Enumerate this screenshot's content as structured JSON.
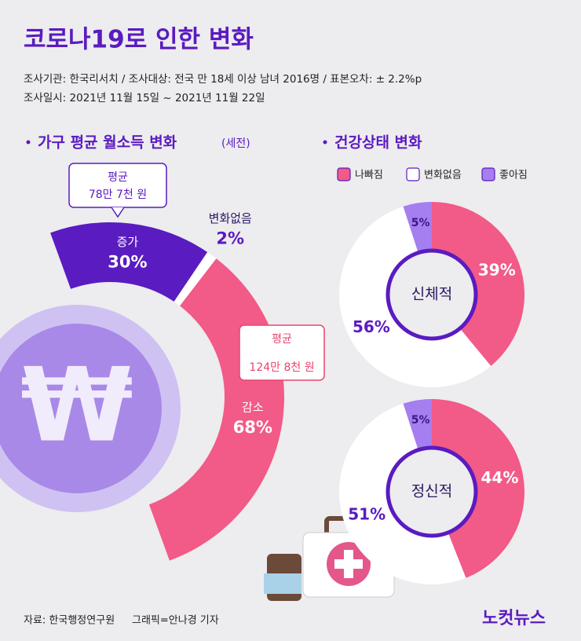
{
  "header": {
    "title": "코로나19로 인한 변화",
    "lines": [
      "조사기관: 한국리서치 / 조사대상: 전국 만 18세 이상 남녀 2016명 / 표본오차: ± 2.2%p",
      "조사일시: 2021년 11월 15일 ~ 2021년 11월 22일"
    ]
  },
  "chart_data": [
    {
      "type": "ring",
      "title": "가구 평균 월소득 변화",
      "subtitle": "(세전)",
      "categories": [
        "증가",
        "변화없음",
        "감소"
      ],
      "values": [
        30,
        2,
        68
      ],
      "value_labels": [
        "30%",
        "2%",
        "68%"
      ],
      "colors": [
        "#5a1bc0",
        "#ffffff",
        "#f25a87"
      ],
      "annotations": [
        {
          "lines": [
            "평균",
            "78만 7천 원"
          ],
          "color": "#5a1bc0"
        },
        {
          "lines": [
            "평균",
            "124만 8천 원"
          ],
          "color": "#e8466f"
        }
      ]
    },
    {
      "type": "pie",
      "title": "건강상태 변화",
      "categories": [
        "나빠짐",
        "변화없음",
        "좋아짐"
      ],
      "center_label": "신체적",
      "values": [
        39,
        56,
        5
      ],
      "value_labels": [
        "39%",
        "56%",
        "5%"
      ],
      "colors": [
        "#f25a87",
        "#ffffff",
        "#a57ef0"
      ]
    },
    {
      "type": "pie",
      "center_label": "정신적",
      "values": [
        44,
        51,
        5
      ],
      "value_labels": [
        "44%",
        "51%",
        "5%"
      ],
      "colors": [
        "#f25a87",
        "#ffffff",
        "#a57ef0"
      ]
    }
  ],
  "footer": {
    "source": "자료: 한국행정연구원",
    "credit": "그래픽=안나경 기자",
    "logo": "노컷뉴스"
  }
}
